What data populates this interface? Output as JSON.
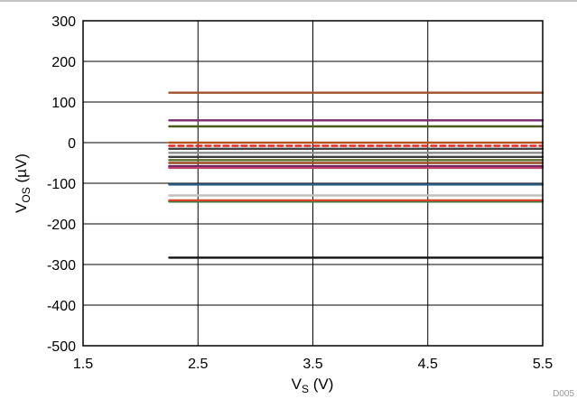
{
  "chart_data": {
    "type": "line",
    "title": "",
    "xlabel": {
      "main": "V",
      "sub": "S",
      "unit": " (V)"
    },
    "ylabel": {
      "main": "V",
      "sub": "OS",
      "unit": " (µV)"
    },
    "xlim": [
      1.5,
      5.5
    ],
    "ylim": [
      -500,
      300
    ],
    "xticks": [
      1.5,
      2.5,
      3.5,
      4.5,
      5.5
    ],
    "xtick_labels": [
      "1.5",
      "2.5",
      "3.5",
      "4.5",
      "5.5"
    ],
    "yticks": [
      300,
      200,
      100,
      0,
      -100,
      -200,
      -300,
      -400,
      -500
    ],
    "ytick_labels": [
      "300",
      "200",
      "100",
      "0",
      "-100",
      "-200",
      "-300",
      "-400",
      "-500"
    ],
    "grid": true,
    "legend": "none",
    "x": [
      2.25,
      5.5
    ],
    "series": [
      {
        "color": "#a0522d",
        "values": [
          123,
          123
        ]
      },
      {
        "color": "#7a2a70",
        "values": [
          55,
          55
        ]
      },
      {
        "color": "#4d5a1e",
        "values": [
          40,
          40
        ]
      },
      {
        "color": "#b5521e",
        "values": [
          0,
          0
        ]
      },
      {
        "color": "#e8221a",
        "values": [
          -8,
          -8
        ],
        "dashed": true
      },
      {
        "color": "#444444",
        "values": [
          -15,
          -15
        ]
      },
      {
        "color": "#8c8c8c",
        "values": [
          -25,
          -25
        ]
      },
      {
        "color": "#3b3b3b",
        "values": [
          -35,
          -35
        ]
      },
      {
        "color": "#5a6b2a",
        "values": [
          -43,
          -43
        ]
      },
      {
        "color": "#9a4a22",
        "values": [
          -50,
          -50
        ]
      },
      {
        "color": "#6b1f5a",
        "values": [
          -58,
          -58
        ]
      },
      {
        "color": "#b8446a",
        "values": [
          -62,
          -62
        ]
      },
      {
        "color": "#2e5f8a",
        "values": [
          -103,
          -103
        ]
      },
      {
        "color": "#c0c0c0",
        "values": [
          -130,
          -130
        ]
      },
      {
        "color": "#2e7d32",
        "values": [
          -145,
          -145
        ]
      },
      {
        "color": "#d9412f",
        "values": [
          -142,
          -142
        ]
      },
      {
        "color": "#111111",
        "values": [
          -283,
          -283
        ]
      }
    ],
    "code": "D005"
  }
}
